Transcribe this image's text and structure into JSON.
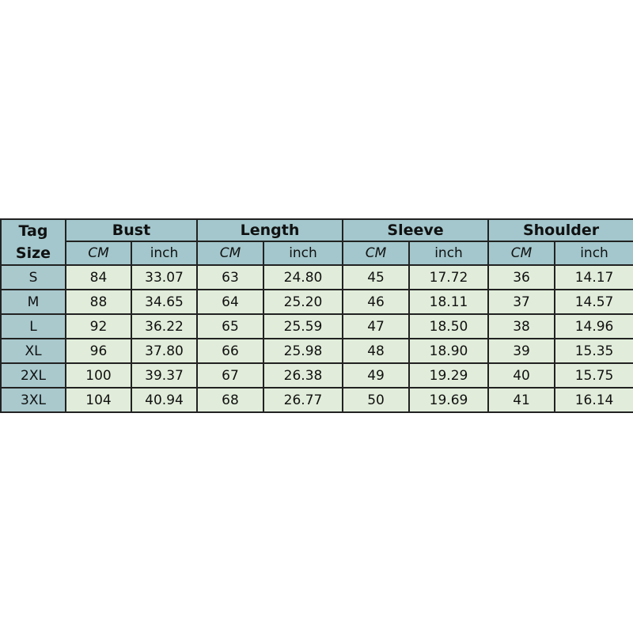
{
  "header": {
    "tag_line1": "Tag",
    "tag_line2": "Size",
    "groups": [
      "Bust",
      "Length",
      "Sleeve",
      "Shoulder"
    ],
    "units": [
      "CM",
      "inch"
    ]
  },
  "rows": [
    {
      "size": "S",
      "values": [
        "84",
        "33.07",
        "63",
        "24.80",
        "45",
        "17.72",
        "36",
        "14.17"
      ]
    },
    {
      "size": "M",
      "values": [
        "88",
        "34.65",
        "64",
        "25.20",
        "46",
        "18.11",
        "37",
        "14.57"
      ]
    },
    {
      "size": "L",
      "values": [
        "92",
        "36.22",
        "65",
        "25.59",
        "47",
        "18.50",
        "38",
        "14.96"
      ]
    },
    {
      "size": "XL",
      "values": [
        "96",
        "37.80",
        "66",
        "25.98",
        "48",
        "18.90",
        "39",
        "15.35"
      ]
    },
    {
      "size": "2XL",
      "values": [
        "100",
        "39.37",
        "67",
        "26.38",
        "49",
        "19.29",
        "40",
        "15.75"
      ]
    },
    {
      "size": "3XL",
      "values": [
        "104",
        "40.94",
        "68",
        "26.77",
        "50",
        "19.69",
        "41",
        "16.14"
      ]
    }
  ],
  "colors": {
    "header": "#a3c7cc",
    "cell": "#e1edda",
    "border": "#222222"
  }
}
